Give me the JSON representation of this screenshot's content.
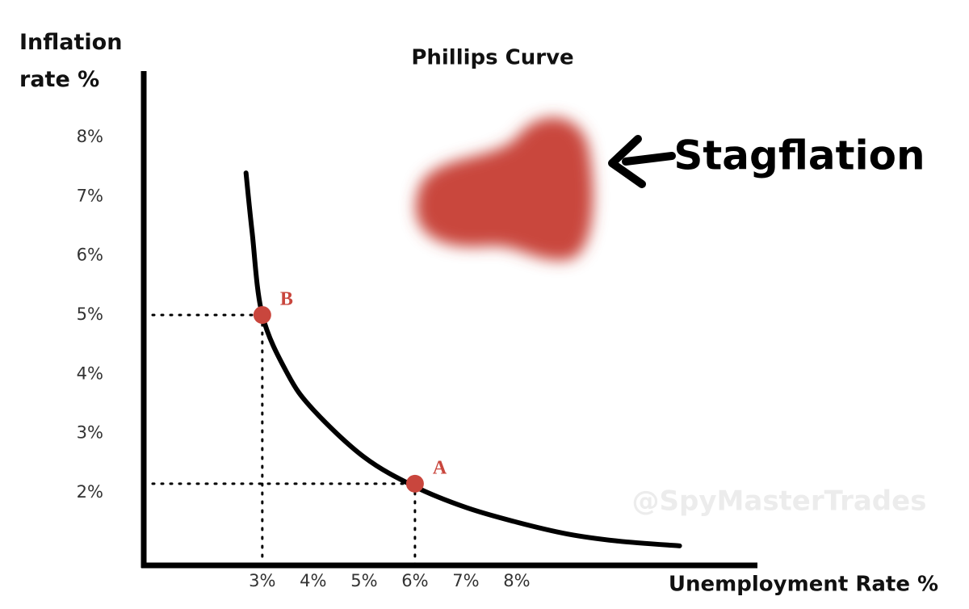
{
  "chart_data": {
    "type": "line",
    "title": "Phillips Curve",
    "x_label": "Unemployment Rate %",
    "y_label": "Inflation rate %",
    "annotation": "Stagflation",
    "watermark": "@SpyMasterTrades",
    "xlim": [
      0.67,
      12.73
    ],
    "ylim": [
      0.77,
      9.12
    ],
    "xticks": [
      {
        "value": 3,
        "label": "3%"
      },
      {
        "value": 4,
        "label": "4%"
      },
      {
        "value": 5,
        "label": "5%"
      },
      {
        "value": 6,
        "label": "6%"
      },
      {
        "value": 7,
        "label": "7%"
      },
      {
        "value": 8,
        "label": "8%"
      }
    ],
    "yticks": [
      {
        "value": 2,
        "label": "2%"
      },
      {
        "value": 3,
        "label": "3%"
      },
      {
        "value": 4,
        "label": "4%"
      },
      {
        "value": 5,
        "label": "5%"
      },
      {
        "value": 6,
        "label": "6%"
      },
      {
        "value": 7,
        "label": "7%"
      },
      {
        "value": 8,
        "label": "8%"
      }
    ],
    "series": [
      {
        "color": "#000000",
        "x": [
          2.68,
          2.8,
          3,
          3.5,
          4,
          5,
          6,
          7,
          8,
          9,
          10,
          11.2
        ],
        "values": [
          7.4,
          6.4,
          5.0,
          4.0,
          3.4,
          2.6,
          2.1,
          1.75,
          1.5,
          1.3,
          1.18,
          1.1
        ]
      }
    ],
    "points": [
      {
        "label": "A",
        "x": 6,
        "y": 2.15,
        "color": "#c9463d"
      },
      {
        "label": "B",
        "x": 3,
        "y": 5,
        "color": "#c9463d"
      }
    ]
  }
}
